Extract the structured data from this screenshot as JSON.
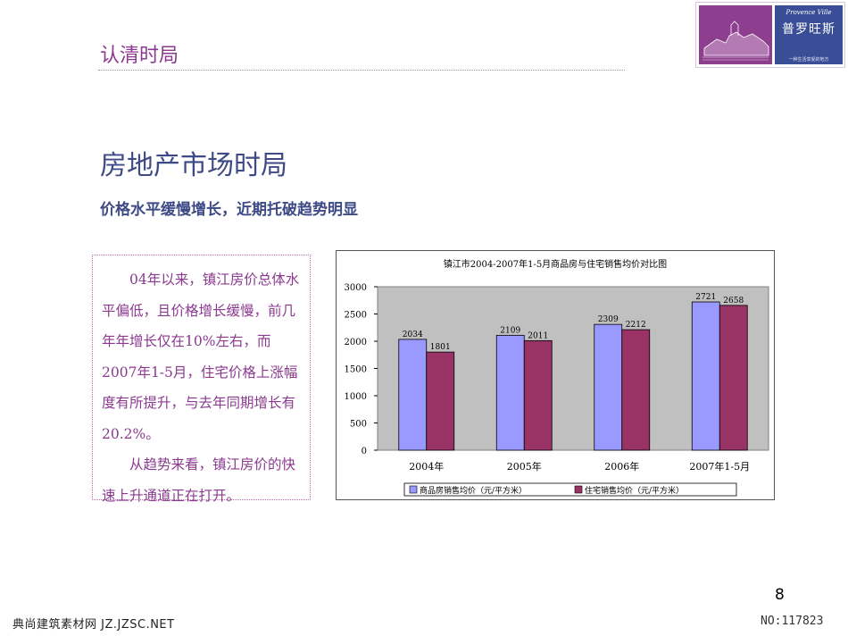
{
  "header": {
    "section_title": "认清时局"
  },
  "logo": {
    "brand": "普罗旺斯",
    "brand_en": "Provence Ville",
    "tagline": "一种生活享受的地方"
  },
  "main": {
    "title": "房地产市场时局",
    "subtitle": "价格水平缓慢增长，近期托破趋势明显",
    "paragraphs": [
      "04年以来，镇江房价总体水平偏低，且价格增长缓慢，前几年年增长仅在10%左右，而2007年1-5月，住宅价格上涨幅度有所提升，与去年同期增长有20.2%。",
      "从趋势来看，镇江房价的快速上升通道正在打开。"
    ]
  },
  "chart_data": {
    "type": "bar",
    "title": "镇江市2004-2007年1-5月商品房与住宅销售均价对比图",
    "categories": [
      "2004年",
      "2005年",
      "2006年",
      "2007年1-5月"
    ],
    "series": [
      {
        "name": "商品房销售均价（元/平方米）",
        "values": [
          2034,
          2109,
          2309,
          2721
        ],
        "color": "#9999FF"
      },
      {
        "name": "住宅销售均价（元/平方米）",
        "values": [
          1801,
          2011,
          2212,
          2658
        ],
        "color": "#993366"
      }
    ],
    "ylim": [
      0,
      3000
    ],
    "yticks": [
      0,
      500,
      1000,
      1500,
      2000,
      2500,
      3000
    ],
    "plot_background": "#C0C0C0",
    "legend_position": "bottom"
  },
  "footer": {
    "page_number": "8",
    "watermark_left": "典尚建筑素材网 JZ.JZSC.NET",
    "watermark_right": "NO:117823"
  }
}
